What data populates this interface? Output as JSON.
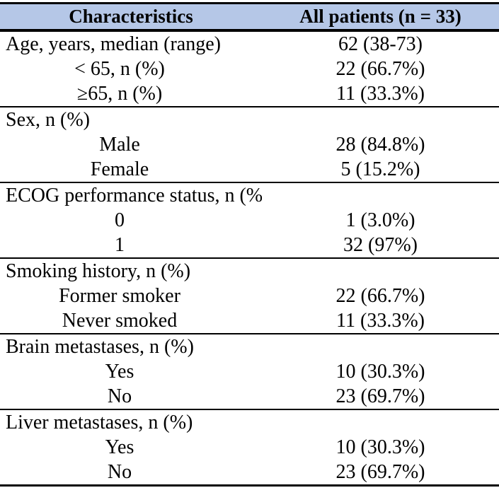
{
  "colors": {
    "header_bg": "#b5c7e7",
    "border": "#000000",
    "text": "#000000"
  },
  "table": {
    "header": {
      "characteristics": "Characteristics",
      "all_patients": "All patients (n = 33)"
    },
    "rows": [
      {
        "label": "Age, years, median (range)",
        "value": "62 (38-73)"
      },
      {
        "label": "< 65, n (%)",
        "value": "22 (66.7%)"
      },
      {
        "label": "≥65, n (%)",
        "value": "11 (33.3%)"
      },
      {
        "label": "Sex, n (%)",
        "value": ""
      },
      {
        "label": "Male",
        "value": "28 (84.8%)"
      },
      {
        "label": "Female",
        "value": "5 (15.2%)"
      },
      {
        "label": "ECOG performance status, n (%)",
        "value": ""
      },
      {
        "label": "0",
        "value": "1 (3.0%)"
      },
      {
        "label": "1",
        "value": "32 (97%)"
      },
      {
        "label": "Smoking history, n (%)",
        "value": ""
      },
      {
        "label": "Former smoker",
        "value": "22 (66.7%)"
      },
      {
        "label": "Never smoked",
        "value": "11 (33.3%)"
      },
      {
        "label": "Brain metastases, n (%)",
        "value": ""
      },
      {
        "label": "Yes",
        "value": "10 (30.3%)"
      },
      {
        "label": "No",
        "value": "23 (69.7%)"
      },
      {
        "label": "Liver metastases, n (%)",
        "value": ""
      },
      {
        "label": "Yes",
        "value": "10 (30.3%)"
      },
      {
        "label": "No",
        "value": "23 (69.7%)"
      }
    ]
  }
}
